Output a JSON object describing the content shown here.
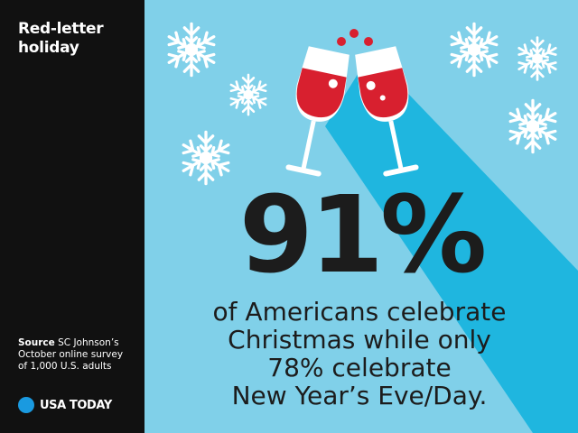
{
  "sidebar": {
    "title": "Red-letter holiday",
    "source_label": "Source",
    "source_text": "SC Johnson’s October online survey of 1,000 U.S. adults",
    "logo": "USA TODAY"
  },
  "main": {
    "headline": "91%",
    "body": [
      "of Americans celebrate",
      "Christmas while only",
      "78% celebrate",
      "New Year’s Eve/Day."
    ]
  }
}
